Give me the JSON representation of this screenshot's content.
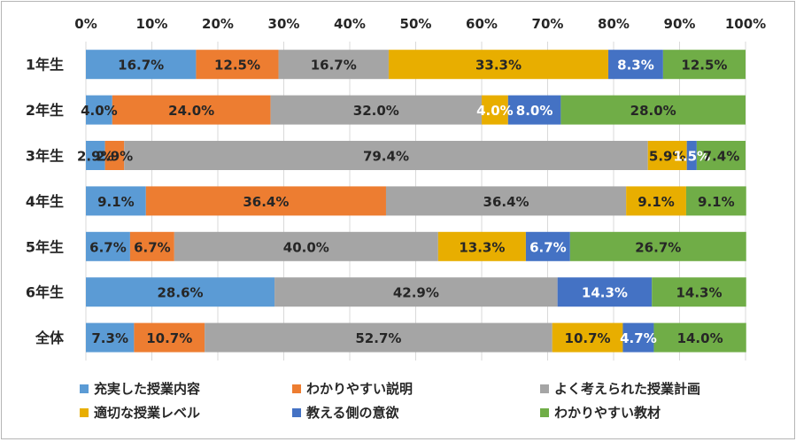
{
  "chart_data": {
    "type": "bar",
    "orientation": "horizontal",
    "stacked": "percent",
    "categories": [
      "1年生",
      "2年生",
      "3年生",
      "4年生",
      "5年生",
      "6年生",
      "全体"
    ],
    "xlim": [
      0,
      100
    ],
    "x_ticks": [
      "0%",
      "10%",
      "20%",
      "30%",
      "40%",
      "50%",
      "60%",
      "70%",
      "80%",
      "90%",
      "100%"
    ],
    "grid": true,
    "legend_position": "bottom",
    "series": [
      {
        "name": "充実した授業内容",
        "color": "#5B9BD5",
        "values": [
          16.7,
          4.0,
          2.9,
          9.1,
          6.7,
          28.6,
          7.3
        ],
        "labels": [
          "16.7%",
          "4.0%",
          "2.9%",
          "9.1%",
          "6.7%",
          "28.6%",
          "7.3%"
        ]
      },
      {
        "name": "わかりやすい説明",
        "color": "#ED7D31",
        "values": [
          12.5,
          24.0,
          2.9,
          36.4,
          6.7,
          0,
          10.7
        ],
        "labels": [
          "12.5%",
          "24.0%",
          "2.9%",
          "36.4%",
          "6.7%",
          "",
          "10.7%"
        ]
      },
      {
        "name": "よく考えられた授業計画",
        "color": "#A5A5A5",
        "values": [
          16.7,
          32.0,
          79.4,
          36.4,
          40.0,
          42.9,
          52.7
        ],
        "labels": [
          "16.7%",
          "32.0%",
          "79.4%",
          "36.4%",
          "40.0%",
          "42.9%",
          "52.7%"
        ]
      },
      {
        "name": "適切な授業レベル",
        "color": "#E8AE00",
        "values": [
          33.3,
          4.0,
          5.9,
          9.1,
          13.3,
          0,
          10.7
        ],
        "labels": [
          "33.3%",
          "4.0%",
          "5.9%",
          "9.1%",
          "13.3%",
          "",
          "10.7%"
        ]
      },
      {
        "name": "教える側の意欲",
        "color": "#4472C4",
        "values": [
          8.3,
          8.0,
          1.5,
          0,
          6.7,
          14.3,
          4.7
        ],
        "labels": [
          "8.3%",
          "8.0%",
          "1.5%",
          "",
          "6.7%",
          "14.3%",
          "4.7%"
        ]
      },
      {
        "name": "わかりやすい教材",
        "color": "#70AD47",
        "values": [
          12.5,
          28.0,
          7.4,
          9.1,
          26.7,
          14.3,
          14.0
        ],
        "labels": [
          "12.5%",
          "28.0%",
          "7.4%",
          "9.1%",
          "26.7%",
          "14.3%",
          "14.0%"
        ]
      }
    ]
  }
}
